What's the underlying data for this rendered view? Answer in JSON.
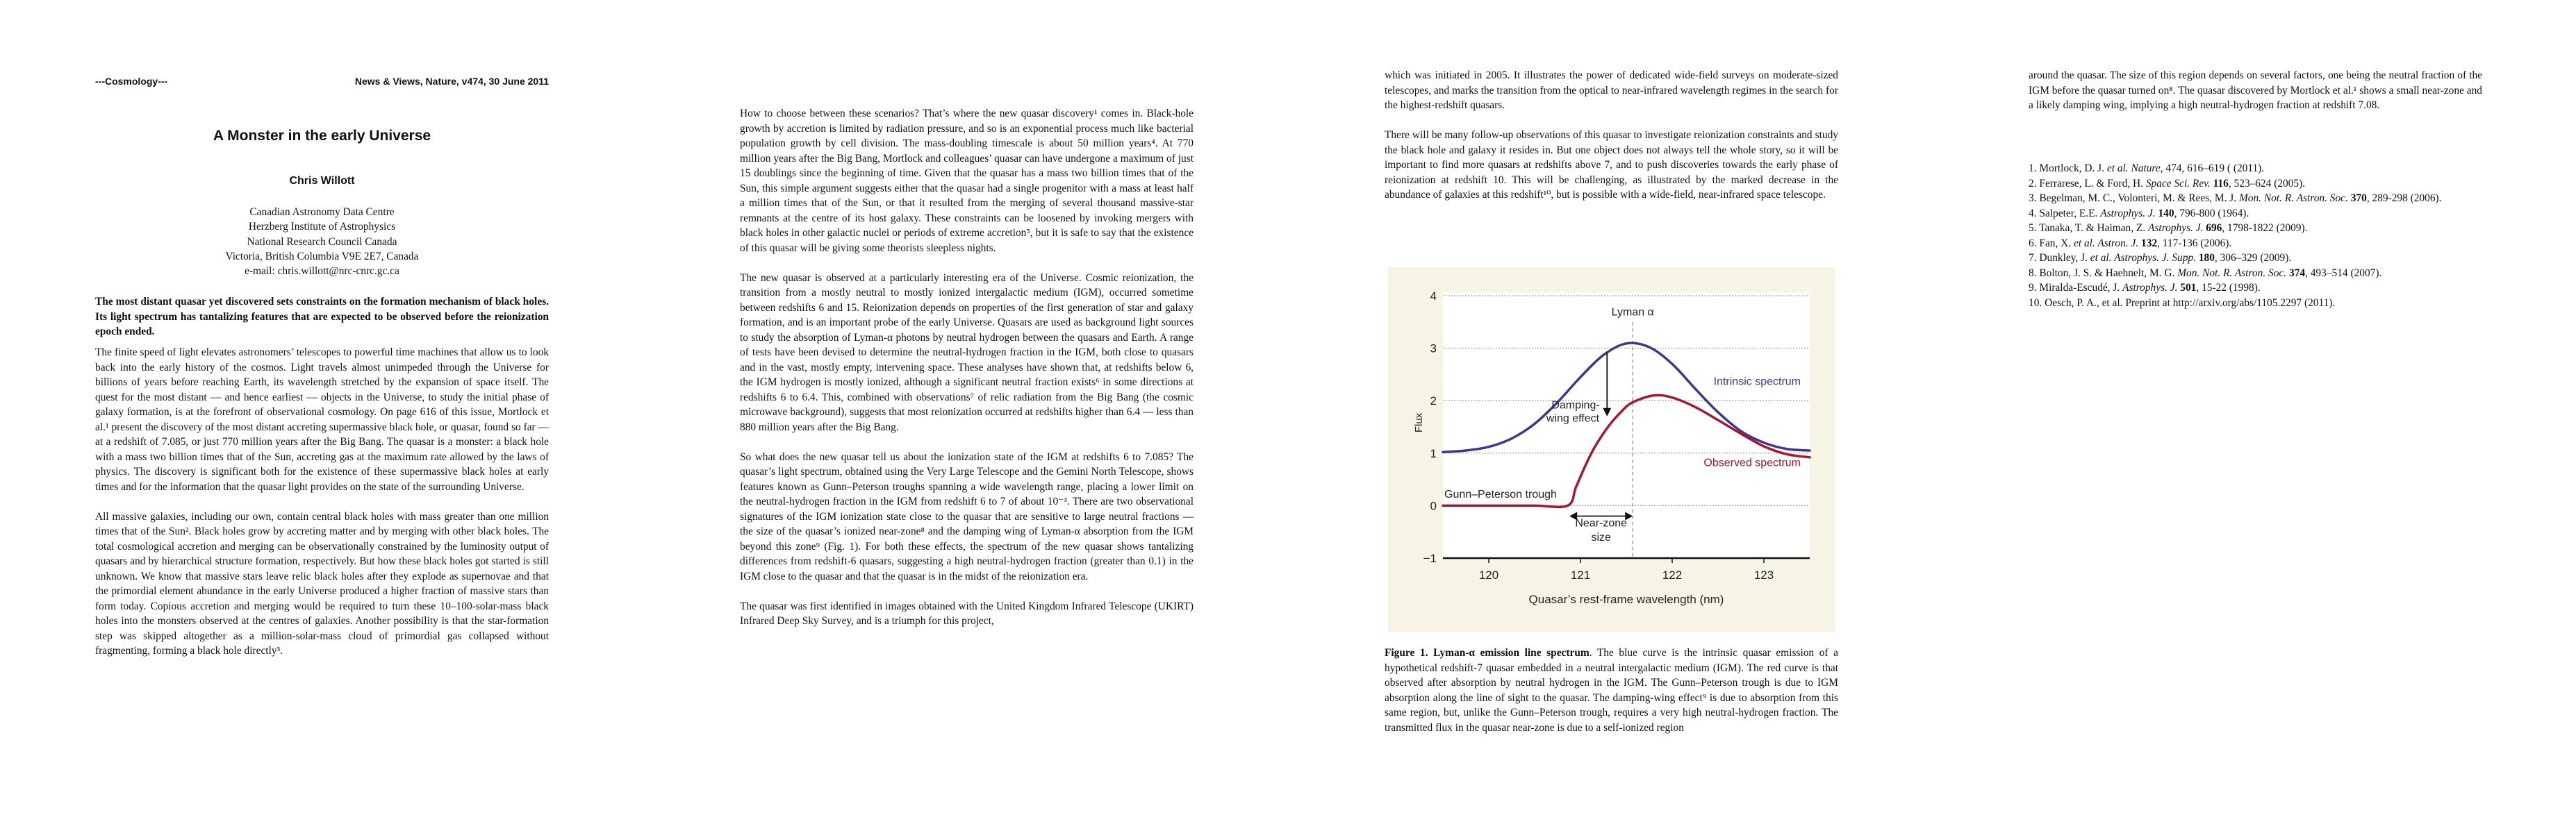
{
  "page1": {
    "section": "---Cosmology---",
    "journal": "News & Views, Nature, v474, 30 June 2011",
    "title": "A Monster in the early Universe",
    "author": "Chris Willott",
    "affiliation": [
      "Canadian Astronomy Data Centre",
      "Herzberg Institute of Astrophysics",
      "National Research Council Canada",
      "Victoria, British Columbia V9E 2E7, Canada",
      "e-mail: chris.willott@nrc-cnrc.gc.ca"
    ],
    "abstract": "The most distant quasar yet discovered sets constraints on the formation mechanism of black holes. Its light spectrum has tantalizing features that are expected to be observed before the reionization epoch ended.",
    "paragraphs": [
      "The finite speed of light elevates astronomers’ telescopes to powerful time machines that allow us to look back into the early history of the cosmos. Light travels almost unimpeded through the Universe for billions of years before reaching Earth, its wavelength stretched by the expansion of space itself. The quest for the most distant — and hence earliest — objects in the Universe, to study the initial phase of galaxy formation, is at the forefront of observational cosmology. On page 616 of this issue, Mortlock et al.¹ present the discovery of the most distant accreting supermassive black hole, or quasar, found so far — at a redshift of 7.085, or just 770 million years after the Big Bang. The quasar is a monster: a black hole with a mass two billion times that of the Sun, accreting gas at the maximum rate allowed by the laws of physics. The discovery is significant both for the existence of these supermassive black holes at early times and for the information that the quasar light provides on the state of the surrounding Universe.",
      "All massive galaxies, including our own, contain central black holes with mass greater than one million times that of the Sun². Black holes grow by accreting matter and by merging with other black holes. The total cosmological accretion and merging can be observationally constrained by the luminosity output of quasars and by hierarchical structure formation, respectively. But how these black holes got started is still unknown. We know that massive stars leave relic black holes after they explode as supernovae and that the primordial element abundance in the early Universe produced a higher fraction of massive stars than form today. Copious accretion and merging would be required to turn these 10–100-solar-mass black holes into the monsters observed at the centres of galaxies. Another possibility is that the star-formation step was skipped altogether as a million-solar-mass cloud of primordial gas collapsed without fragmenting, forming a black hole directly³."
    ]
  },
  "page2": {
    "paragraphs": [
      "How to choose between these scenarios? That’s where the new quasar discovery¹ comes in. Black-hole growth by accretion is limited by radiation pressure, and so is an exponential process much like bacterial population growth by cell division. The mass-doubling timescale is about 50 million years⁴. At 770 million years after the Big Bang, Mortlock and colleagues’ quasar can have undergone a maximum of just 15 doublings since the beginning of time. Given that the quasar has a mass two billion times that of the Sun, this simple argument suggests either that the quasar had a single progenitor with a mass at least half a million times that of the Sun, or that it resulted from the merging of several thousand massive-star remnants at the centre of its host galaxy. These constraints can be loosened by invoking mergers with black holes in other galactic nuclei or periods of extreme accretion⁵, but it is safe to say that the existence of this quasar will be giving some theorists sleepless nights.",
      "The new quasar is observed at a particularly interesting era of the Universe. Cosmic reionization, the transition from a mostly neutral to mostly ionized intergalactic medium (IGM), occurred sometime between redshifts 6 and 15. Reionization depends on properties of the first generation of star and galaxy formation, and is an important probe of the early Universe. Quasars are used as background light sources to study the absorption of Lyman-α photons by neutral hydrogen between the quasars and Earth. A range of tests have been devised to determine the neutral-hydrogen fraction in the IGM, both close to quasars and in the vast, mostly empty, intervening space. These analyses have shown that, at redshifts below 6, the IGM hydrogen is mostly ionized, although a significant neutral fraction exists⁶ in some directions at redshifts 6 to 6.4. This, combined with observations⁷ of relic radiation from the Big Bang (the cosmic microwave background), suggests that most reionization occurred at redshifts higher than 6.4 — less than 880 million years after the Big Bang.",
      "So what does the new quasar tell us about the ionization state of the IGM at redshifts 6 to 7.085? The quasar’s light spectrum, obtained using the Very Large Telescope and the Gemini North Telescope, shows features known as Gunn–Peterson troughs spanning a wide wavelength range, placing a lower limit on the neutral-hydrogen fraction in the IGM from redshift 6 to 7 of about 10⁻³. There are two observational signatures of the IGM ionization state close to the quasar that are sensitive to large neutral fractions — the size of the quasar’s ionized near-zone⁸ and the damping wing of Lyman-α absorption from the IGM beyond this zone⁹ (Fig. 1). For both these effects, the spectrum of the new quasar shows tantalizing differences from redshift-6 quasars, suggesting a high neutral-hydrogen fraction (greater than 0.1) in the IGM close to the quasar and that the quasar is in the midst of the reionization era.",
      "The quasar was first identified in images obtained with the United Kingdom Infrared Telescope (UKIRT) Infrared Deep Sky Survey, and is a triumph for this project,"
    ]
  },
  "page3": {
    "paragraphs": [
      "which was initiated in 2005. It illustrates the power of dedicated wide-field surveys on moderate-sized telescopes, and marks the transition from the optical to near-infrared wavelength regimes in the search for the highest-redshift quasars.",
      "There will be many follow-up observations of this quasar to investigate reionization constraints and study the black hole and galaxy it resides in. But one object does not always tell the whole story, so it will be important to find more quasars at redshifts above 7, and to push discoveries towards the early phase of reionization at redshift 10. This will be challenging, as illustrated by the marked decrease in the abundance of galaxies at this redshift¹⁰, but is possible with a wide-field, near-infrared space telescope."
    ],
    "caption_title": "Figure 1. Lyman-α emission line spectrum",
    "caption_text": ". The blue curve is the intrinsic quasar emission of a hypothetical redshift-7 quasar embedded in a neutral intergalactic medium (IGM). The red curve is that observed after absorption by neutral hydrogen in the IGM. The Gunn–Peterson trough is due to IGM absorption along the line of sight to the quasar. The damping-wing effect⁹ is due to absorption from this same region, but, unlike the Gunn–Peterson trough, requires a very high neutral-hydrogen fraction. The transmitted flux in the quasar near-zone is due to a self-ionized region"
  },
  "page4": {
    "paragraphs": [
      "around the quasar. The size of this region depends on several factors, one being the neutral fraction of the IGM before the quasar turned on⁸. The quasar discovered by Mortlock et al.¹ shows a small near-zone and a likely damping wing, implying a high neutral-hydrogen fraction at redshift 7.08."
    ],
    "references": [
      {
        "pre": "1. Mortlock, D. J. ",
        "journal": "et al. Nature,",
        "vol": "",
        "post": "  474, 616–619 ( (2011)."
      },
      {
        "pre": "2. Ferrarese, L. & Ford, H. ",
        "journal": "Space Sci. Rev.",
        "vol": " 116",
        "post": ", 523–624 (2005)."
      },
      {
        "pre": "3. Begelman, M. C., Volonteri, M. & Rees, M. J. ",
        "journal": "Mon. Not. R. Astron. Soc.",
        "vol": " 370",
        "post": ", 289-298 (2006)."
      },
      {
        "pre": "4. Salpeter, E.E. ",
        "journal": "Astrophys. J.",
        "vol": " 140",
        "post": ", 796-800 (1964)."
      },
      {
        "pre": "5. Tanaka, T. & Haiman, Z. ",
        "journal": "Astrophys. J.",
        "vol": " 696",
        "post": ", 1798-1822 (2009)."
      },
      {
        "pre": "6. Fan, X. ",
        "journal": "et al. Astron. J.",
        "vol": " 132",
        "post": ", 117-136 (2006)."
      },
      {
        "pre": "7. Dunkley, J. ",
        "journal": "et al. Astrophys. J. Supp.",
        "vol": " 180",
        "post": ", 306–329 (2009)."
      },
      {
        "pre": "8. Bolton, J. S. & Haehnelt, M. G. ",
        "journal": "Mon. Not. R. Astron. Soc.",
        "vol": " 374",
        "post": ", 493–514 (2007)."
      },
      {
        "pre": "9. Miralda-Escudé, J. ",
        "journal": "Astrophys. J.",
        "vol": " 501",
        "post": ", 15-22 (1998)."
      },
      {
        "pre": "10. Oesch, P. A., et al. Preprint at http://arxiv.org/abs/1105.2297 (2011).",
        "journal": "",
        "vol": "",
        "post": ""
      }
    ]
  },
  "chart_data": {
    "type": "line",
    "title": "",
    "xlabel": "Quasar’s rest-frame wavelength (nm)",
    "ylabel": "Flux",
    "xlim": [
      119.5,
      123.5
    ],
    "ylim": [
      -1,
      4
    ],
    "xticks": [
      120,
      121,
      122,
      123
    ],
    "yticks": [
      -1,
      0,
      1,
      2,
      3,
      4
    ],
    "ytick_labels": [
      "−1",
      "0",
      "1",
      "2",
      "3",
      "4"
    ],
    "grid": "horizontal dotted",
    "background": "#f7f3e5",
    "series": [
      {
        "name": "Intrinsic spectrum",
        "color": "#3b3794",
        "x": [
          119.5,
          119.75,
          120.0,
          120.25,
          120.5,
          120.75,
          121.0,
          121.25,
          121.5,
          121.75,
          122.0,
          122.25,
          122.5,
          122.75,
          123.0,
          123.25,
          123.5
        ],
        "y": [
          1.02,
          1.05,
          1.12,
          1.28,
          1.56,
          1.97,
          2.45,
          2.87,
          3.09,
          3.02,
          2.7,
          2.23,
          1.78,
          1.42,
          1.2,
          1.08,
          1.05
        ]
      },
      {
        "name": "Observed spectrum",
        "color": "#a5172f",
        "x": [
          119.5,
          120.0,
          120.5,
          120.86,
          120.95,
          121.05,
          121.15,
          121.3,
          121.45,
          121.57,
          121.8,
          122.0,
          122.25,
          122.5,
          122.75,
          123.0,
          123.25,
          123.5
        ],
        "y": [
          0,
          0,
          0,
          0,
          0.35,
          0.75,
          1.1,
          1.5,
          1.8,
          1.97,
          2.1,
          2.06,
          1.88,
          1.63,
          1.37,
          1.13,
          0.98,
          0.92
        ]
      }
    ],
    "reference_line": {
      "label": "Lyman α",
      "x": 121.57
    },
    "annotations": {
      "damping": [
        "Damping-",
        "wing effect"
      ],
      "gunn_peterson": "Gunn–Peterson trough",
      "near_zone": [
        "Near-zone",
        "size"
      ]
    }
  }
}
